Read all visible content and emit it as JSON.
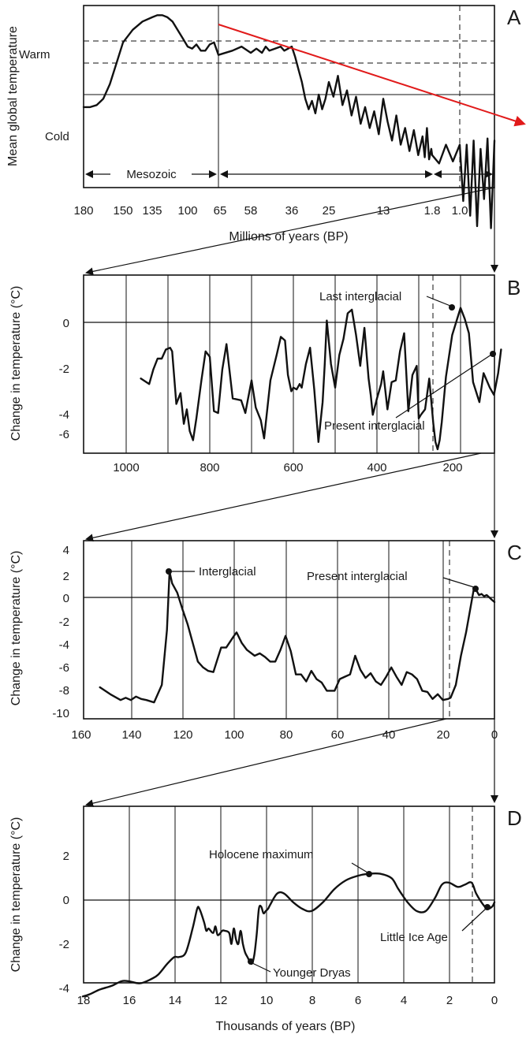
{
  "chart_data": [
    {
      "panel": "A",
      "type": "line",
      "ylabel": "Mean global temperature",
      "xlabel": "Millions of years (BP)",
      "y_labels": [
        "Warm",
        "Cold"
      ],
      "tick_labels": [
        "180",
        "150",
        "135",
        "100",
        "65",
        "58",
        "36",
        "25",
        "13",
        "1.8",
        "1.0"
      ],
      "era_label": "Mesozoic",
      "series": [
        {
          "x": [
            180,
            175,
            170,
            165,
            160,
            155,
            150,
            145,
            140,
            135,
            130,
            125,
            120,
            115,
            110,
            105,
            100,
            95,
            90,
            85,
            80,
            75,
            70,
            65,
            62,
            60,
            58,
            55,
            52,
            50,
            48,
            45,
            42,
            40,
            38,
            36,
            35,
            34,
            33,
            32,
            31,
            30,
            29,
            28,
            27,
            26,
            25,
            24,
            23,
            22,
            21,
            20,
            19,
            18,
            17,
            16,
            15,
            14,
            13,
            12,
            11,
            10,
            9,
            8,
            7,
            6,
            5,
            4,
            3.5,
            3,
            2.5,
            2,
            1.8,
            1.6,
            1.4,
            1.2,
            1.0,
            0.9,
            0.8,
            0.7,
            0.6,
            0.5,
            0.4,
            0.3,
            0.2,
            0.1,
            0
          ],
          "y": [
            -0.6,
            -0.6,
            -0.5,
            -0.2,
            0.5,
            1.5,
            2.5,
            3.1,
            3.5,
            3.7,
            3.8,
            3.8,
            3.7,
            3.5,
            3.1,
            2.7,
            2.3,
            2.2,
            2.4,
            2.1,
            2.1,
            2.4,
            2.5,
            1.9,
            2.1,
            2.3,
            2.0,
            2.2,
            2.0,
            2.3,
            2.1,
            2.2,
            2.3,
            2.1,
            2.2,
            2.3,
            1.8,
            1.2,
            0.6,
            -0.2,
            -0.7,
            -0.3,
            -0.9,
            0.0,
            -0.7,
            -0.2,
            0.6,
            -0.1,
            0.9,
            -0.5,
            0.2,
            -1.0,
            -0.1,
            -1.4,
            -0.6,
            -1.6,
            -0.8,
            -1.9,
            -0.2,
            -1.3,
            -2.2,
            -1.0,
            -2.4,
            -1.6,
            -2.7,
            -1.7,
            -2.9,
            -2.0,
            -3.0,
            -1.6,
            -3.1,
            -2.6,
            -2.9,
            -3.3,
            -2.4,
            -3.2,
            -2.4,
            -5.1,
            -2.4,
            -5.8,
            -2.2,
            -6.3,
            -2.6,
            -5.0,
            -2.1,
            -6.4,
            -2.2
          ]
        }
      ],
      "trend_color": "#e11a1a"
    },
    {
      "panel": "B",
      "type": "line",
      "ylabel": "Change in temperature (°C)",
      "xlabel": "",
      "xlim": [
        1100,
        100
      ],
      "ylim": [
        -7,
        2.4
      ],
      "xticks": [
        "1000",
        "800",
        "600",
        "400",
        "200"
      ],
      "yticks": [
        "0",
        "-2",
        "-4",
        "-6"
      ],
      "annotations": [
        "Last interglacial",
        "Present interglacial"
      ],
      "series": [
        {
          "x": [
            965,
            945,
            935,
            925,
            915,
            905,
            895,
            890,
            880,
            870,
            862,
            855,
            848,
            840,
            832,
            820,
            810,
            800,
            790,
            780,
            770,
            760,
            745,
            725,
            715,
            710,
            700,
            690,
            678,
            670,
            655,
            640,
            630,
            620,
            613,
            605,
            600,
            592,
            585,
            580,
            570,
            560,
            550,
            540,
            530,
            525,
            520,
            510,
            500,
            490,
            480,
            470,
            460,
            450,
            440,
            430,
            420,
            415,
            410,
            400,
            390,
            385,
            375,
            365,
            355,
            345,
            335,
            325,
            315,
            305,
            300,
            295,
            285,
            275,
            265,
            260,
            255,
            250,
            245,
            235,
            220,
            200,
            190,
            180,
            170,
            155,
            145,
            130,
            120,
            110,
            103
          ],
          "y": [
            -3.1,
            -3.4,
            -2.6,
            -2.0,
            -2.0,
            -1.5,
            -1.4,
            -1.6,
            -4.5,
            -3.9,
            -5.6,
            -4.8,
            -6.0,
            -6.5,
            -5.3,
            -3.2,
            -1.6,
            -1.9,
            -4.9,
            -5.0,
            -2.6,
            -1.2,
            -4.2,
            -4.3,
            -5.0,
            -4.4,
            -3.2,
            -4.7,
            -5.4,
            -6.4,
            -3.2,
            -1.8,
            -0.8,
            -1.0,
            -2.9,
            -3.8,
            -3.6,
            -3.7,
            -3.4,
            -3.6,
            -2.3,
            -1.4,
            -3.7,
            -6.6,
            -4.4,
            -2.3,
            0.1,
            -2.3,
            -3.6,
            -1.8,
            -0.9,
            0.5,
            0.7,
            -0.7,
            -2.4,
            -0.3,
            -3.1,
            -4.0,
            -5.1,
            -4.2,
            -3.4,
            -2.7,
            -4.8,
            -3.3,
            -3.2,
            -1.6,
            -0.6,
            -4.9,
            -2.9,
            -2.4,
            -5.3,
            -5.1,
            -4.8,
            -3.1,
            -5.6,
            -6.6,
            -7.0,
            -6.5,
            -5.5,
            -3.0,
            -0.7,
            0.8,
            0.2,
            -0.6,
            -3.3,
            -4.4,
            -2.8,
            -3.6,
            -4.0,
            -2.8,
            -1.5
          ]
        }
      ]
    },
    {
      "panel": "C",
      "type": "line",
      "ylabel": "Change in temperature (°C)",
      "xlabel": "",
      "xlim": [
        160,
        0
      ],
      "ylim": [
        -10.6,
        4.6
      ],
      "xticks": [
        "160",
        "140",
        "120",
        "100",
        "80",
        "60",
        "40",
        "20",
        "0"
      ],
      "yticks": [
        "4",
        "2",
        "0",
        "-2",
        "-4",
        "-6",
        "-8",
        "-10"
      ],
      "annotations": [
        "Interglacial",
        "Present interglacial"
      ],
      "series": [
        {
          "x": [
            153,
            149,
            145,
            143,
            141,
            139,
            137,
            135,
            132,
            129,
            127,
            126,
            125,
            123,
            121,
            119,
            117,
            115,
            113,
            111,
            109,
            106,
            104,
            101,
            100,
            98,
            96,
            93,
            91,
            89,
            87,
            85,
            83,
            81,
            79,
            77,
            75,
            73,
            71,
            69,
            67,
            65,
            62,
            60,
            58,
            56,
            54,
            52,
            50,
            48,
            46,
            44,
            42,
            40,
            38,
            36,
            34,
            32,
            30,
            28,
            26,
            24,
            22,
            20,
            18,
            17,
            15,
            13,
            11,
            9,
            8,
            7,
            6,
            5,
            4,
            3,
            2,
            1,
            0
          ],
          "y": [
            -7.7,
            -8.3,
            -8.8,
            -8.6,
            -8.8,
            -8.5,
            -8.7,
            -8.8,
            -9.0,
            -7.5,
            -2.8,
            2.2,
            1.2,
            0.4,
            -1.0,
            -2.3,
            -3.9,
            -5.5,
            -6.0,
            -6.3,
            -6.4,
            -4.3,
            -4.3,
            -3.3,
            -3.0,
            -3.9,
            -4.5,
            -5.0,
            -4.8,
            -5.1,
            -5.5,
            -5.5,
            -4.5,
            -3.3,
            -4.6,
            -6.6,
            -6.6,
            -7.2,
            -6.3,
            -7.0,
            -7.3,
            -8.0,
            -8.0,
            -7.0,
            -6.8,
            -6.6,
            -5.0,
            -6.2,
            -6.9,
            -6.5,
            -7.2,
            -7.5,
            -6.8,
            -6.0,
            -6.8,
            -7.5,
            -6.4,
            -6.6,
            -7.0,
            -8.0,
            -8.1,
            -8.7,
            -8.3,
            -8.8,
            -8.7,
            -8.6,
            -7.5,
            -5.0,
            -3.0,
            -0.5,
            0.7,
            0.6,
            0.2,
            0.3,
            0.1,
            0.2,
            0.0,
            -0.2,
            -0.4
          ]
        }
      ]
    },
    {
      "panel": "D",
      "type": "line",
      "ylabel": "Change in temperature (°C)",
      "xlabel": "Thousands of years (BP)",
      "xlim": [
        18,
        0
      ],
      "ylim": [
        -4.6,
        3.55
      ],
      "xticks": [
        "18",
        "16",
        "14",
        "12",
        "10",
        "8",
        "6",
        "4",
        "2",
        "0"
      ],
      "yticks": [
        "2",
        "0",
        "-2",
        "-4"
      ],
      "annotations": [
        "Holocene maximum",
        "Younger Dryas",
        "Little Ice Age"
      ],
      "series": [
        {
          "x": [
            18,
            17.7,
            17.3,
            17,
            16.7,
            16.3,
            16,
            15.5,
            15,
            14.7,
            14.3,
            14,
            13.8,
            13.5,
            13.2,
            13,
            12.9,
            12.7,
            12.6,
            12.5,
            12.3,
            12.2,
            12.1,
            11.9,
            11.8,
            11.6,
            11.5,
            11.4,
            11.3,
            11.2,
            11.1,
            11.0,
            10.9,
            10.8,
            10.7,
            10.6,
            10.5,
            10.4,
            10.3,
            10.2,
            10.1,
            10.0,
            9.9,
            9.8,
            9.5,
            9.2,
            8.8,
            8.4,
            8.0,
            7.5,
            7.0,
            6.5,
            6.0,
            5.5,
            5.0,
            4.5,
            4.2,
            3.8,
            3.4,
            3.0,
            2.6,
            2.3,
            2.0,
            1.6,
            1.3,
            1.0,
            0.8,
            0.5,
            0.3,
            0.1,
            0
          ],
          "y": [
            -4.4,
            -4.3,
            -4.1,
            -4.0,
            -3.9,
            -3.7,
            -3.7,
            -3.8,
            -3.6,
            -3.4,
            -2.9,
            -2.6,
            -2.6,
            -2.4,
            -1.3,
            -0.4,
            -0.4,
            -1.0,
            -1.4,
            -1.3,
            -1.5,
            -1.2,
            -1.6,
            -1.4,
            -1.4,
            -1.5,
            -2.0,
            -1.3,
            -1.8,
            -2.0,
            -1.4,
            -2.0,
            -2.4,
            -2.6,
            -2.8,
            -2.9,
            -2.5,
            -1.6,
            -0.4,
            -0.3,
            -0.6,
            -0.5,
            -0.4,
            -0.2,
            0.3,
            0.3,
            -0.1,
            -0.4,
            -0.5,
            -0.1,
            0.5,
            0.9,
            1.1,
            1.2,
            1.2,
            1.0,
            0.5,
            -0.1,
            -0.5,
            -0.5,
            0.1,
            0.7,
            0.8,
            0.6,
            0.7,
            0.8,
            0.3,
            -0.2,
            -0.4,
            -0.3,
            -0.1
          ]
        }
      ]
    }
  ]
}
